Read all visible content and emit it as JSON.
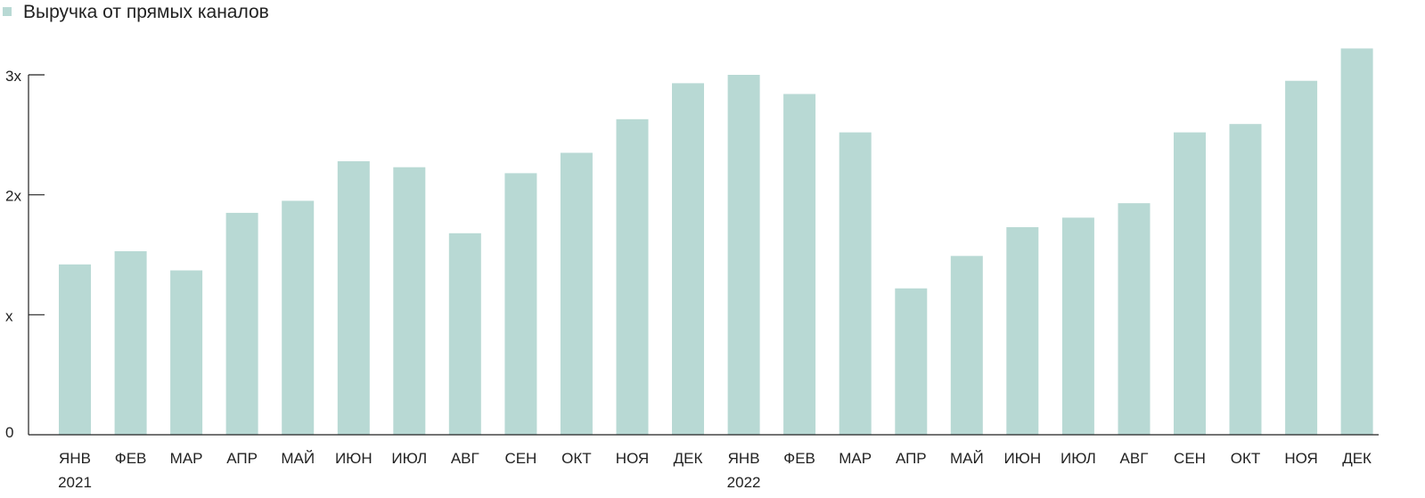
{
  "chart_data": {
    "type": "bar",
    "series": [
      {
        "name": "Выручка от прямых каналов",
        "color": "#b8d9d4",
        "values": [
          1.42,
          1.53,
          1.37,
          1.85,
          1.95,
          2.28,
          2.23,
          1.68,
          2.18,
          2.35,
          2.63,
          2.93,
          3.0,
          2.84,
          2.52,
          1.22,
          1.49,
          1.73,
          1.81,
          1.93,
          2.52,
          2.59,
          2.95,
          3.22
        ]
      }
    ],
    "categories": [
      "ЯНВ",
      "ФЕВ",
      "МАР",
      "АПР",
      "МАЙ",
      "ИЮН",
      "ИЮЛ",
      "АВГ",
      "СЕН",
      "ОКТ",
      "НОЯ",
      "ДЕК",
      "ЯНВ",
      "ФЕВ",
      "МАР",
      "АПР",
      "МАЙ",
      "ИЮН",
      "ИЮЛ",
      "АВГ",
      "СЕН",
      "ОКТ",
      "НОЯ",
      "ДЕК"
    ],
    "year_labels": [
      {
        "index": 0,
        "label": "2021"
      },
      {
        "index": 12,
        "label": "2022"
      }
    ],
    "y_ticks": [
      {
        "value": 0,
        "label": "0"
      },
      {
        "value": 1,
        "label": "x"
      },
      {
        "value": 2,
        "label": "2x"
      },
      {
        "value": 3,
        "label": "3x"
      }
    ],
    "ylim": [
      0,
      3.3
    ],
    "title": "",
    "xlabel": "",
    "ylabel": "",
    "grid": false,
    "legend_position": "top-left"
  }
}
